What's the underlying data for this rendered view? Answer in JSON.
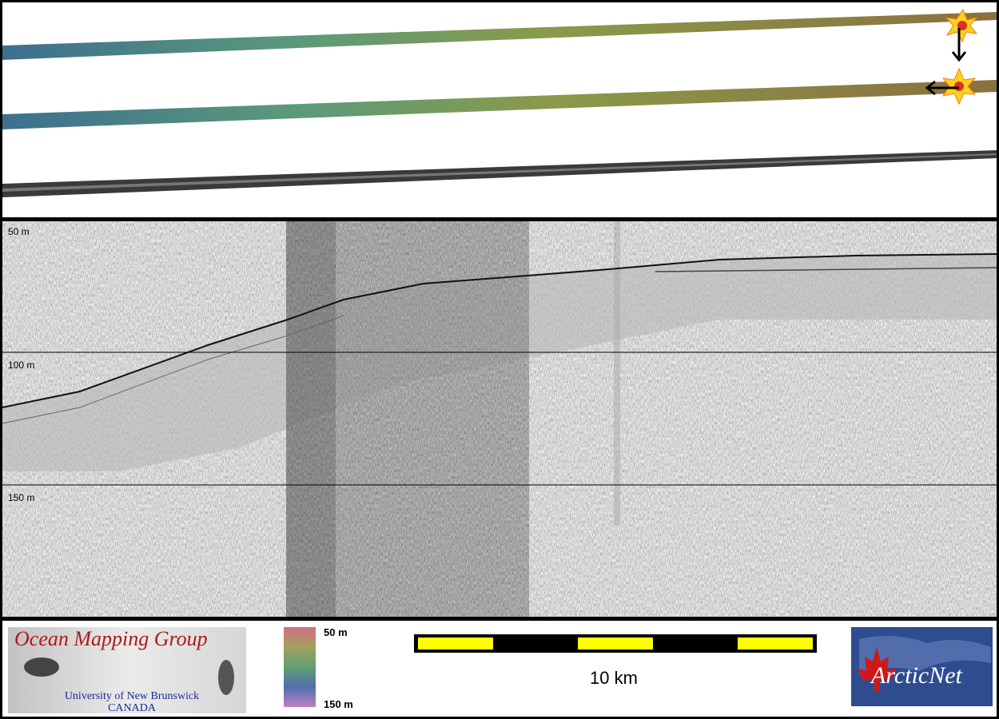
{
  "profile": {
    "depth_labels": [
      "50 m",
      "100 m",
      "150 m"
    ]
  },
  "footer": {
    "logo": {
      "title": "Ocean Mapping Group",
      "university": "University of New Brunswick",
      "country": "CANADA"
    },
    "colorbar": {
      "top_label": "50 m",
      "bottom_label": "150 m"
    },
    "scalebar": {
      "label": "10 km"
    },
    "partner_logo": {
      "text": "ArcticNet"
    }
  }
}
